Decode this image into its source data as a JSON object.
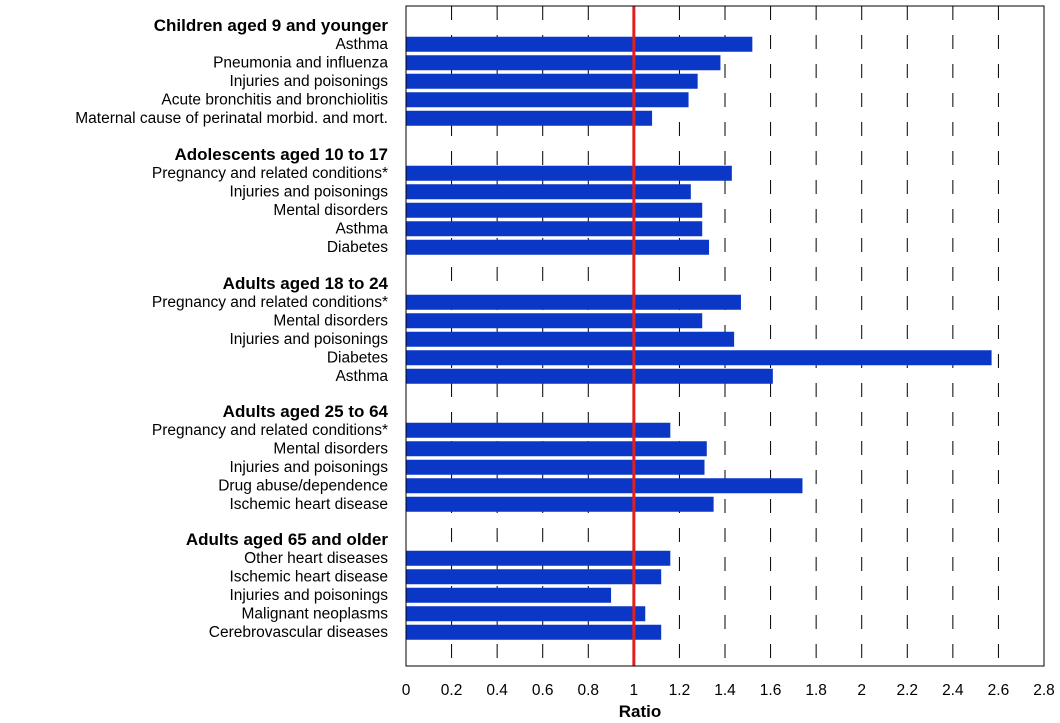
{
  "chart_data": {
    "type": "bar",
    "orientation": "horizontal",
    "xlabel": "Ratio",
    "xlim": [
      0,
      2.8
    ],
    "x_ticks": [
      "0",
      "0.2",
      "0.4",
      "0.6",
      "0.8",
      "1",
      "1.2",
      "1.4",
      "1.6",
      "1.8",
      "2",
      "2.2",
      "2.4",
      "2.6",
      "2.8"
    ],
    "reference_line": {
      "value": 1,
      "color": "#e02020"
    },
    "bar_color": "#0a37c6",
    "grid": "dashed vertical",
    "groups": [
      {
        "title": "Children aged 9 and younger",
        "items": [
          {
            "label": "Asthma",
            "value": 1.52
          },
          {
            "label": "Pneumonia and influenza",
            "value": 1.38
          },
          {
            "label": "Injuries and poisonings",
            "value": 1.28
          },
          {
            "label": "Acute bronchitis and bronchiolitis",
            "value": 1.24
          },
          {
            "label": "Maternal cause of perinatal morbid. and mort.",
            "value": 1.08
          }
        ]
      },
      {
        "title": "Adolescents aged 10 to 17",
        "items": [
          {
            "label": "Pregnancy and related conditions*",
            "value": 1.43
          },
          {
            "label": "Injuries and poisonings",
            "value": 1.25
          },
          {
            "label": "Mental disorders",
            "value": 1.3
          },
          {
            "label": "Asthma",
            "value": 1.3
          },
          {
            "label": "Diabetes",
            "value": 1.33
          }
        ]
      },
      {
        "title": "Adults aged 18 to 24",
        "items": [
          {
            "label": "Pregnancy and related conditions*",
            "value": 1.47
          },
          {
            "label": "Mental disorders",
            "value": 1.3
          },
          {
            "label": "Injuries and poisonings",
            "value": 1.44
          },
          {
            "label": "Diabetes",
            "value": 2.57
          },
          {
            "label": "Asthma",
            "value": 1.61
          }
        ]
      },
      {
        "title": "Adults aged 25 to 64",
        "items": [
          {
            "label": "Pregnancy and related conditions*",
            "value": 1.16
          },
          {
            "label": "Mental disorders",
            "value": 1.32
          },
          {
            "label": "Injuries and poisonings",
            "value": 1.31
          },
          {
            "label": "Drug abuse/dependence",
            "value": 1.74
          },
          {
            "label": "Ischemic heart disease",
            "value": 1.35
          }
        ]
      },
      {
        "title": "Adults aged 65 and older",
        "items": [
          {
            "label": "Other heart diseases",
            "value": 1.16
          },
          {
            "label": "Ischemic heart disease",
            "value": 1.12
          },
          {
            "label": "Injuries and poisonings",
            "value": 0.9
          },
          {
            "label": "Malignant neoplasms",
            "value": 1.05
          },
          {
            "label": "Cerebrovascular diseases",
            "value": 1.12
          }
        ]
      }
    ]
  }
}
